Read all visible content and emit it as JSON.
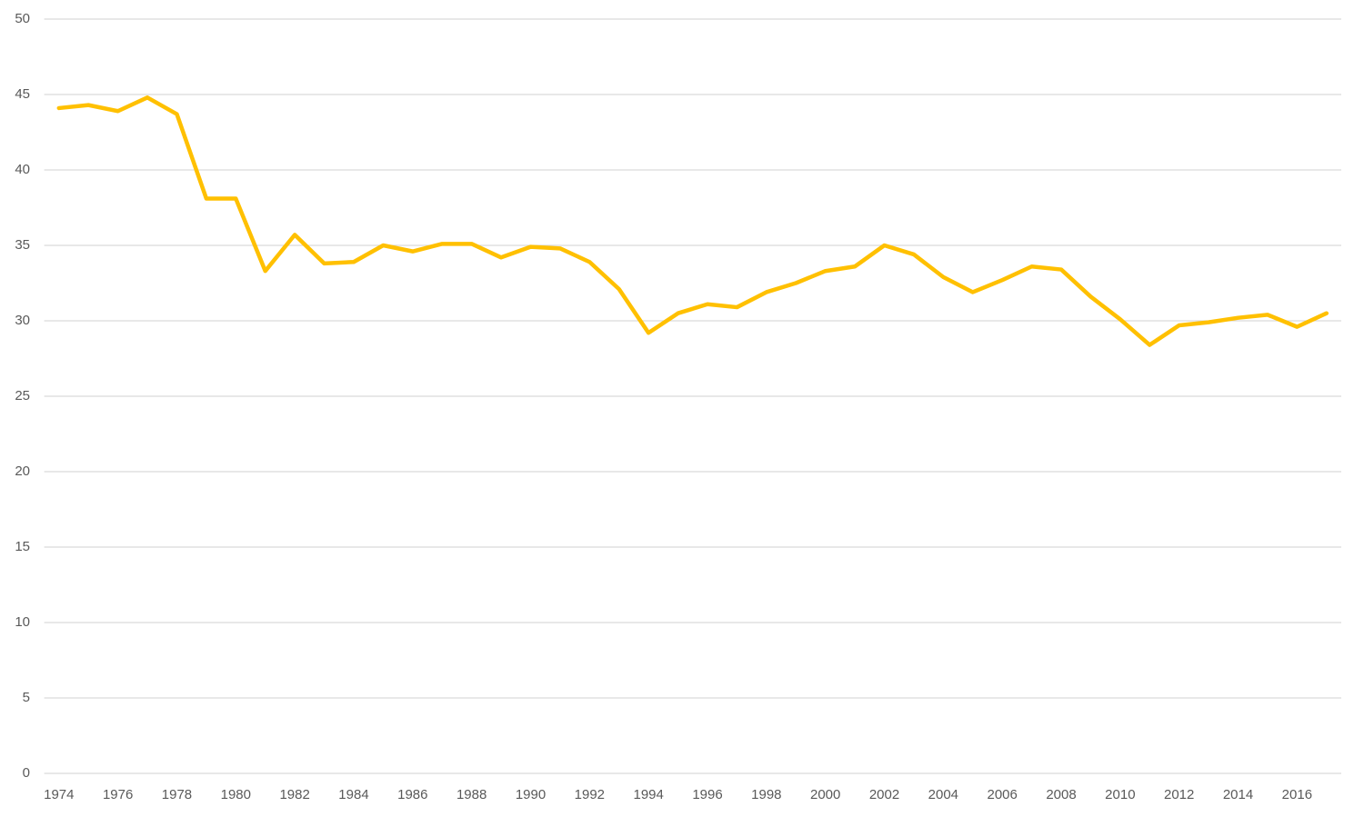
{
  "chart_data": {
    "type": "line",
    "categories": [
      "1974",
      null,
      "1976",
      null,
      "1978",
      null,
      "1980",
      null,
      "1982",
      null,
      "1984",
      null,
      "1986",
      null,
      "1988",
      null,
      "1990",
      null,
      "1992",
      null,
      "1994",
      null,
      "1996",
      null,
      "1998",
      null,
      "2000",
      null,
      "2002",
      null,
      "2004",
      null,
      "2006",
      null,
      "2008",
      null,
      "2010",
      null,
      "2012",
      null,
      "2014",
      null,
      "2016",
      null
    ],
    "values": [
      44.1,
      44.3,
      43.9,
      44.8,
      43.7,
      38.1,
      38.1,
      33.3,
      35.7,
      33.8,
      33.9,
      35.0,
      34.6,
      35.1,
      35.1,
      34.2,
      34.9,
      34.8,
      33.9,
      32.1,
      29.2,
      30.5,
      31.1,
      30.9,
      31.9,
      32.5,
      33.3,
      33.6,
      35.0,
      34.4,
      32.9,
      31.9,
      32.7,
      33.6,
      33.4,
      31.6,
      30.1,
      28.4,
      29.7,
      29.9,
      30.2,
      30.4,
      29.6,
      30.5
    ],
    "color": "#ffc000",
    "ylim": [
      0,
      50
    ],
    "yticks": [
      0,
      5,
      10,
      15,
      20,
      25,
      30,
      35,
      40,
      45,
      50
    ],
    "grid": true
  }
}
